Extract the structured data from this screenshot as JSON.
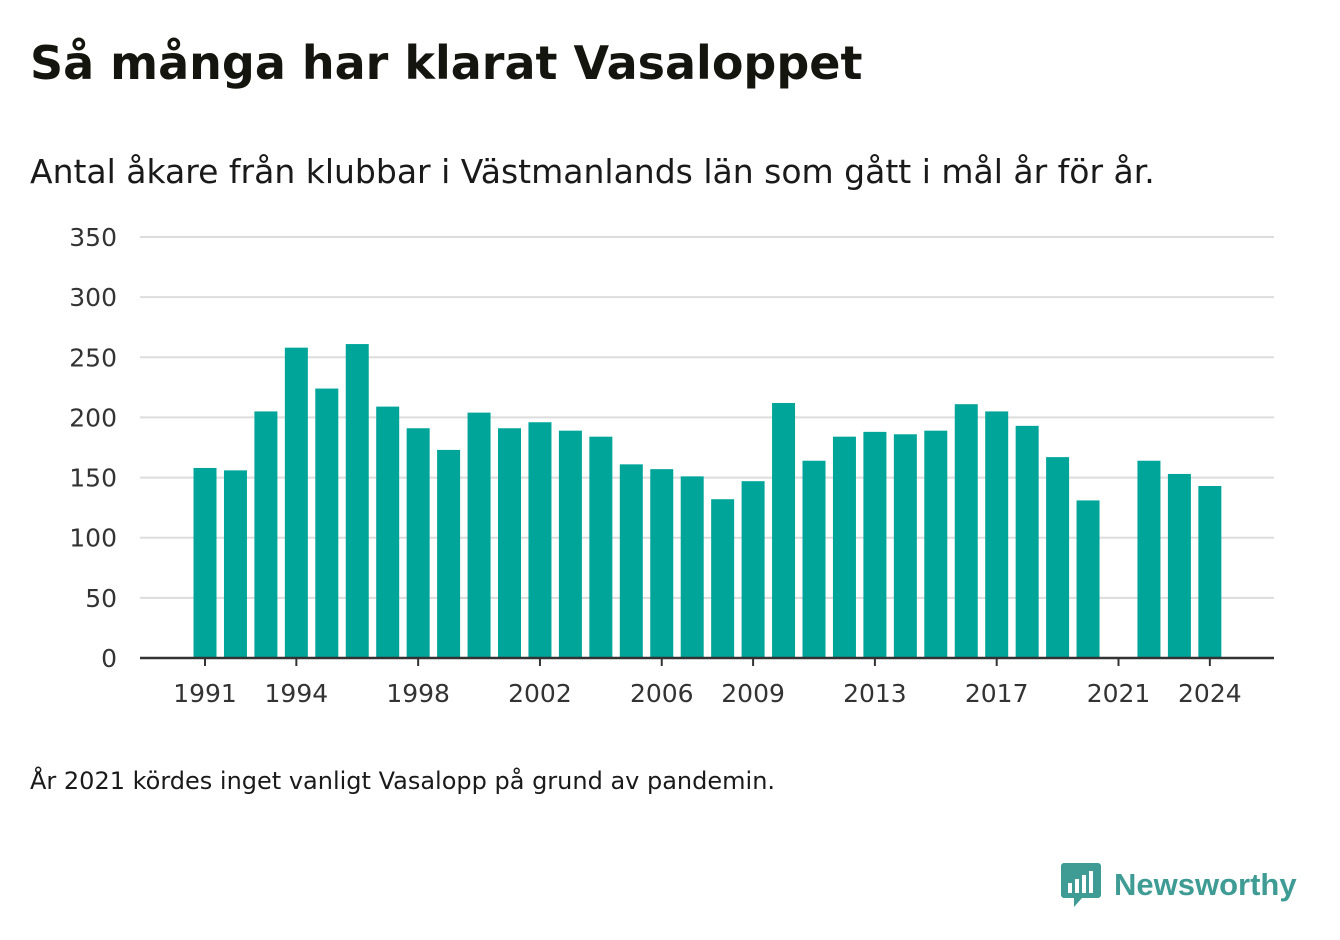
{
  "header": {
    "title": "Så många har klarat Vasaloppet",
    "subtitle": "Antal åkare från klubbar i Västmanlands län som gått i mål år för år."
  },
  "footer": {
    "note": "År 2021 kördes inget vanligt Vasalopp på grund av pandemin.",
    "brand": "Newsworthy"
  },
  "colors": {
    "bar": "#00a59a",
    "grid": "#dddddd",
    "axis": "#333333",
    "brand": "#3e9c94"
  },
  "chart_data": {
    "type": "bar",
    "categories": [
      1991,
      1992,
      1993,
      1994,
      1995,
      1996,
      1997,
      1998,
      1999,
      2000,
      2001,
      2002,
      2003,
      2004,
      2005,
      2006,
      2007,
      2008,
      2009,
      2010,
      2011,
      2012,
      2013,
      2014,
      2015,
      2016,
      2017,
      2018,
      2019,
      2020,
      2021,
      2022,
      2023,
      2024
    ],
    "values": [
      158,
      156,
      205,
      258,
      224,
      261,
      209,
      191,
      173,
      204,
      191,
      196,
      189,
      184,
      161,
      157,
      151,
      132,
      147,
      212,
      164,
      184,
      188,
      186,
      189,
      211,
      205,
      193,
      167,
      131,
      null,
      164,
      153,
      143
    ],
    "x_tick_labels": [
      "1991",
      "1994",
      "1998",
      "2002",
      "2006",
      "2009",
      "2013",
      "2017",
      "2021",
      "2024"
    ],
    "y_ticks": [
      0,
      50,
      100,
      150,
      200,
      250,
      300,
      350
    ],
    "ylim": [
      0,
      350
    ],
    "grid": true
  }
}
